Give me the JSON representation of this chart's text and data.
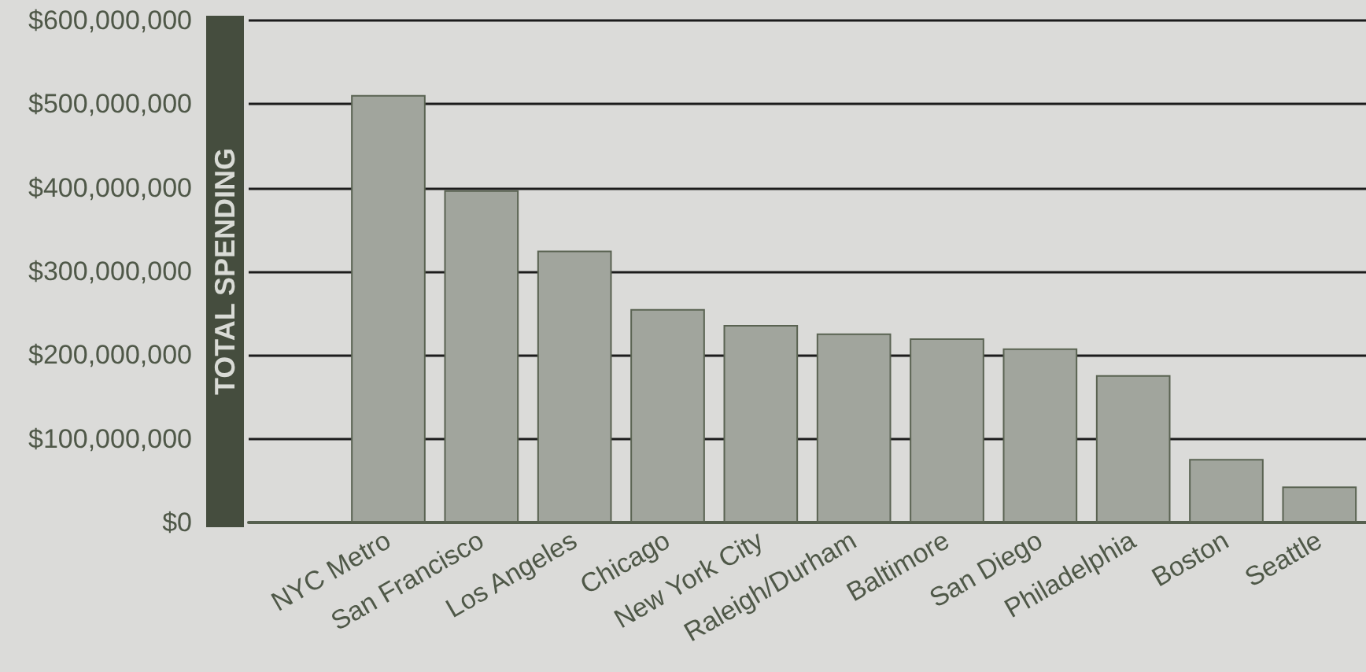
{
  "chart_data": {
    "type": "bar",
    "ylabel": "TOTAL SPENDING",
    "categories": [
      null,
      "NYC Metro",
      "San Francisco",
      "Los Angeles",
      "Chicago",
      "New York City",
      "Raleigh/Durham",
      "Baltimore",
      "San Diego",
      "Philadelphia",
      "Boston",
      "Seattle"
    ],
    "values": [
      null,
      511000000,
      397000000,
      325000000,
      255000000,
      236000000,
      226000000,
      220000000,
      208000000,
      176000000,
      76000000,
      43000000
    ],
    "color": "#a1a59d",
    "ylim": [
      0,
      600000000
    ],
    "yticks": [
      {
        "value": 0,
        "label": "$0"
      },
      {
        "value": 100000000,
        "label": "$100,000,000"
      },
      {
        "value": 200000000,
        "label": "$200,000,000"
      },
      {
        "value": 300000000,
        "label": "$300,000,000"
      },
      {
        "value": 400000000,
        "label": "$400,000,000"
      },
      {
        "value": 500000000,
        "label": "$500,000,000"
      },
      {
        "value": 600000000,
        "label": "$600,000,000"
      }
    ],
    "grid": "y"
  }
}
